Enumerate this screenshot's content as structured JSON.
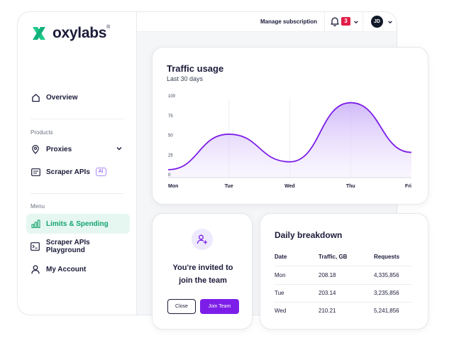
{
  "brand": {
    "name": "oxylabs",
    "mark": "®",
    "color": "#1fc98a"
  },
  "sidebar": {
    "overview": "Overview",
    "products_label": "Products",
    "proxies": "Proxies",
    "scraper_apis": "Scraper APIs",
    "ai_badge": "AI",
    "menu_label": "Menu",
    "limits": "Limits & Spending",
    "playground": "Scraper APIs Playground",
    "account": "My Account"
  },
  "topbar": {
    "manage": "Manage subscription",
    "notifications": "3",
    "avatar": "JD"
  },
  "traffic": {
    "title": "Traffic usage",
    "subtitle": "Last 30 days"
  },
  "chart_data": {
    "type": "area",
    "x": [
      "Mon",
      "Tue",
      "Wed",
      "Thu",
      "Fri"
    ],
    "values": [
      10,
      55,
      20,
      95,
      32
    ],
    "yticks": [
      0,
      25,
      50,
      75,
      100
    ],
    "ylim": [
      0,
      100
    ],
    "grid": "vertical",
    "line_color": "#7c1ee8",
    "fill_color": "#d9c6fb"
  },
  "invite": {
    "line1": "You're invited to",
    "line2": "join the team",
    "close": "Close",
    "join": "Join Team"
  },
  "daily": {
    "title": "Daily breakdown",
    "headers": [
      "Date",
      "Traffic, GB",
      "Requests"
    ],
    "rows": [
      [
        "Mon",
        "208.18",
        "4,335,856"
      ],
      [
        "Tue",
        "203.14",
        "3,235,856"
      ],
      [
        "Wed",
        "210.21",
        "5,241,856"
      ]
    ]
  }
}
